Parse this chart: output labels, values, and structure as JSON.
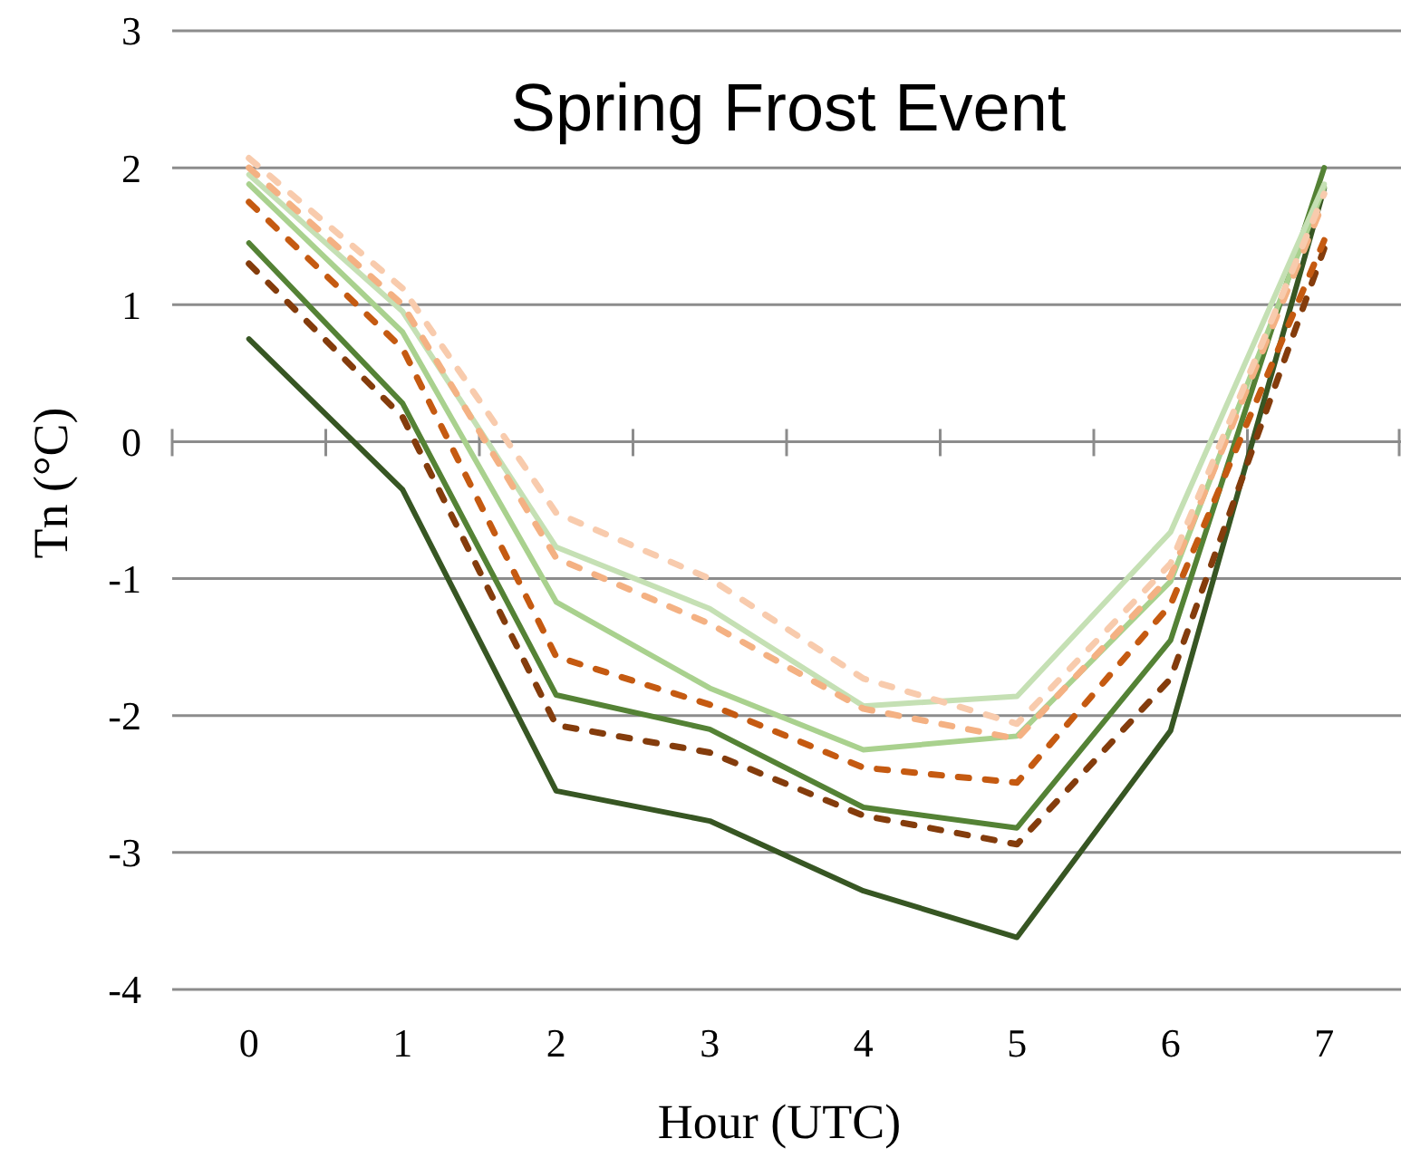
{
  "chart_data": {
    "type": "line",
    "title": "Spring Frost Event",
    "xlabel": "Hour (UTC)",
    "ylabel": "Tn (°C)",
    "categories": [
      "0",
      "1",
      "2",
      "3",
      "4",
      "5",
      "6",
      "7"
    ],
    "ylim": [
      -4,
      3
    ],
    "yticks": [
      -4,
      -3,
      -2,
      -1,
      0,
      1,
      2,
      3
    ],
    "grid": "y",
    "series": [
      {
        "color": "#375623",
        "line_style": "solid",
        "values": [
          0.75,
          -0.35,
          -2.55,
          -2.77,
          -3.28,
          -3.62,
          -2.11,
          1.85
        ]
      },
      {
        "color": "#548235",
        "line_style": "solid",
        "values": [
          1.45,
          0.28,
          -1.85,
          -2.1,
          -2.67,
          -2.82,
          -1.45,
          2.0
        ]
      },
      {
        "color": "#a9d18e",
        "line_style": "solid",
        "values": [
          1.88,
          0.8,
          -1.17,
          -1.8,
          -2.25,
          -2.15,
          -1.02,
          1.86
        ]
      },
      {
        "color": "#c5e0b4",
        "line_style": "solid",
        "values": [
          1.95,
          0.95,
          -0.77,
          -1.22,
          -1.93,
          -1.86,
          -0.66,
          1.88
        ]
      },
      {
        "color": "#843c0c",
        "line_style": "dashed",
        "values": [
          1.3,
          0.18,
          -2.07,
          -2.27,
          -2.73,
          -2.94,
          -1.73,
          1.41
        ]
      },
      {
        "color": "#c55a11",
        "line_style": "dashed",
        "values": [
          1.75,
          0.68,
          -1.57,
          -1.92,
          -2.38,
          -2.49,
          -1.19,
          1.47
        ]
      },
      {
        "color": "#f4b183",
        "line_style": "dashed",
        "values": [
          2.0,
          1.0,
          -0.85,
          -1.33,
          -1.95,
          -2.17,
          -0.98,
          1.76
        ]
      },
      {
        "color": "#f8cbad",
        "line_style": "dashed",
        "values": [
          2.07,
          1.12,
          -0.52,
          -1.0,
          -1.73,
          -2.06,
          -0.89,
          1.81
        ]
      }
    ]
  }
}
